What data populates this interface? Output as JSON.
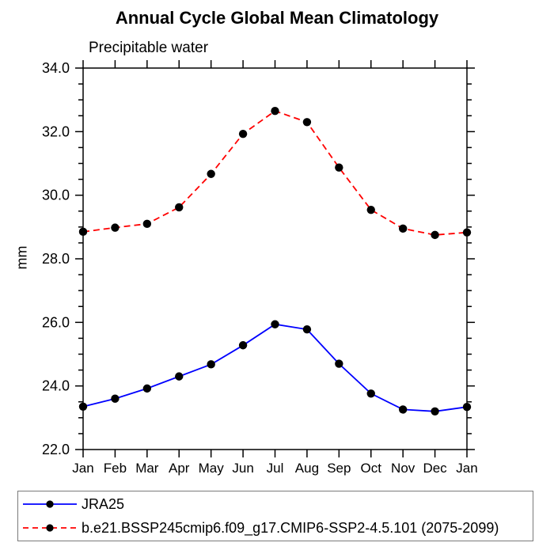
{
  "chart_data": {
    "type": "line",
    "title": "Annual Cycle Global Mean Climatology",
    "subtitle": "Precipitable water",
    "ylabel": "mm",
    "xlabel": "",
    "categories": [
      "Jan",
      "Feb",
      "Mar",
      "Apr",
      "May",
      "Jun",
      "Jul",
      "Aug",
      "Sep",
      "Oct",
      "Nov",
      "Dec",
      "Jan"
    ],
    "ylim": [
      22.0,
      34.0
    ],
    "ytick_step": 2.0,
    "ytick_minor_step": 0.5,
    "ytick_label_decimals": 1,
    "grid": false,
    "legend_position": "bottom-left-box",
    "frame_color": "#000000",
    "marker": "filled-circle",
    "marker_color": "#000000",
    "series": [
      {
        "name": "JRA25",
        "color": "#0000ff",
        "style": "solid",
        "values": [
          23.35,
          23.6,
          23.92,
          24.3,
          24.68,
          25.28,
          25.94,
          25.78,
          24.7,
          23.76,
          23.26,
          23.2,
          23.34
        ]
      },
      {
        "name": "b.e21.BSSP245cmip6.f09_g17.CMIP6-SSP2-4.5.101 (2075-2099)",
        "color": "#ff0000",
        "style": "dashed",
        "values": [
          28.85,
          28.98,
          29.1,
          29.62,
          30.67,
          31.93,
          32.65,
          32.3,
          30.87,
          29.54,
          28.95,
          28.75,
          28.83
        ]
      }
    ]
  }
}
